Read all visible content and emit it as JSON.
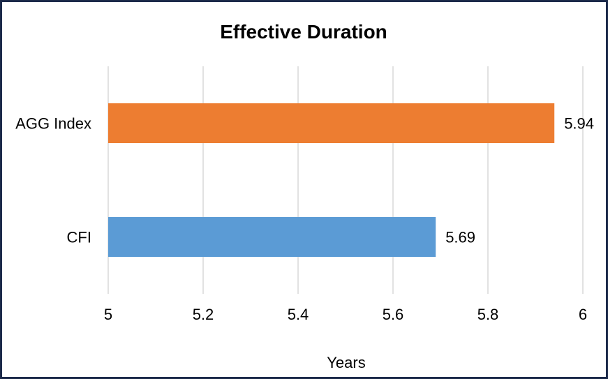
{
  "chart_data": {
    "type": "bar",
    "orientation": "horizontal",
    "title": "Effective Duration",
    "xlabel": "Years",
    "ylabel": "",
    "categories": [
      "AGG Index",
      "CFI"
    ],
    "values": [
      5.94,
      5.69
    ],
    "data_labels": [
      "5.94",
      "5.69"
    ],
    "colors": [
      "#ed7d31",
      "#5b9bd5"
    ],
    "xlim": [
      5,
      6
    ],
    "x_ticks": [
      5,
      5.2,
      5.4,
      5.6,
      5.8,
      6
    ],
    "x_tick_labels": [
      "5",
      "5.2",
      "5.4",
      "5.6",
      "5.8",
      "6"
    ],
    "grid": true,
    "legend": "none"
  }
}
